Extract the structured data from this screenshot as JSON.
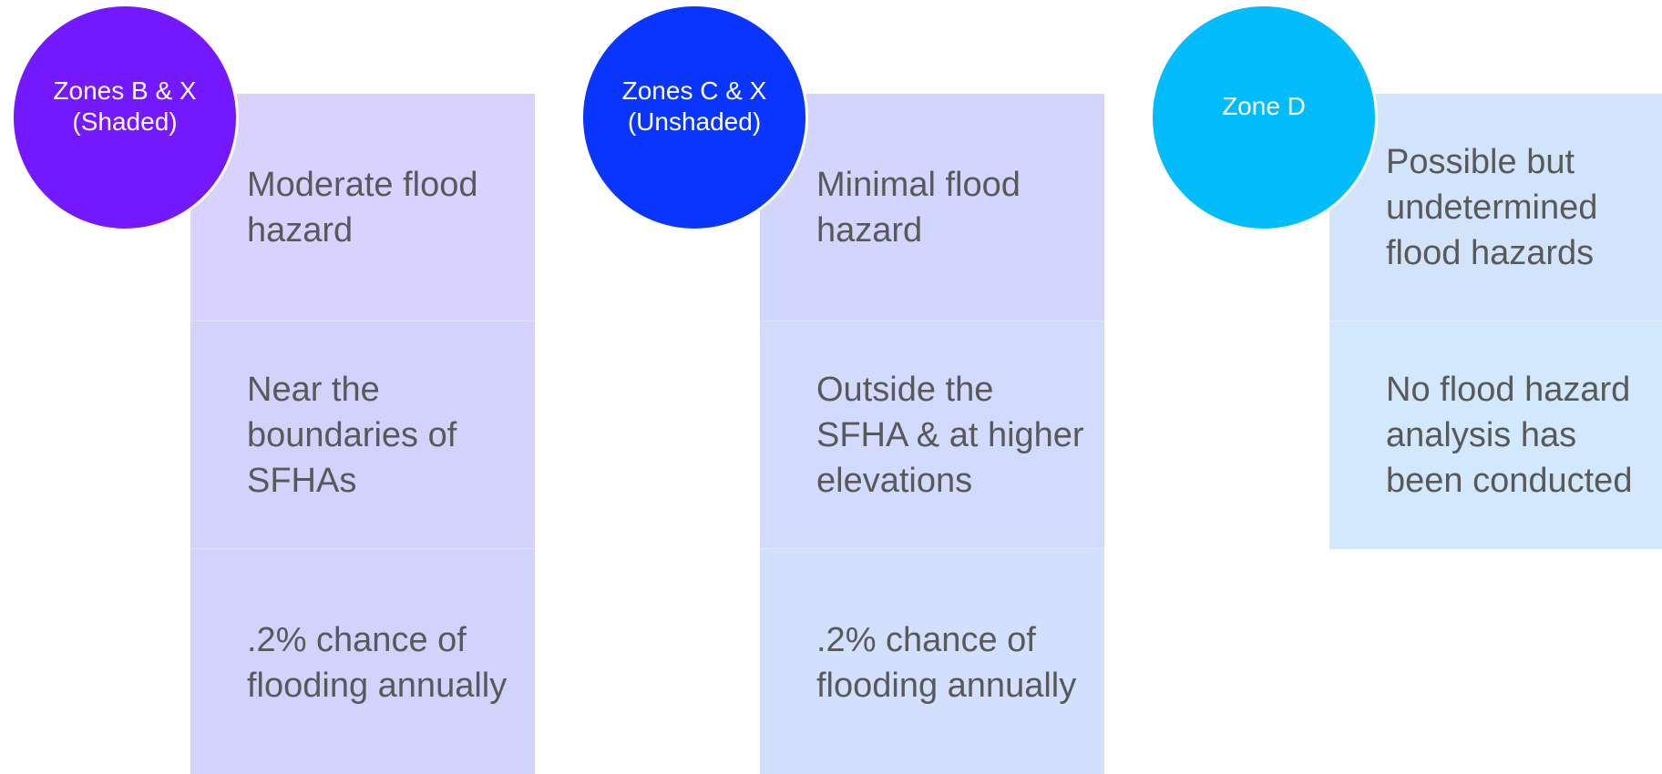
{
  "zones": [
    {
      "title": "Zones B & X (Shaded)",
      "badge_color": "#7318FF",
      "rows": [
        {
          "text": "Moderate flood hazard",
          "color": "#D9D2FE"
        },
        {
          "text": "Near the boundaries of SFHAs",
          "color": "#D3D2FD"
        },
        {
          "text": ".2% chance of flooding annually",
          "color": "#D2D3FD"
        }
      ]
    },
    {
      "title": "Zones C & X (Unshaded)",
      "badge_color": "#0A35FF",
      "rows": [
        {
          "text": "Minimal flood hazard",
          "color": "#D2D5FD"
        },
        {
          "text": "Outside the SFHA & at higher elevations",
          "color": "#D2DAFD"
        },
        {
          "text": ".2% chance of flooding annually",
          "color": "#D2E0FD"
        }
      ]
    },
    {
      "title": "Zone D",
      "badge_color": "#02BCFC",
      "rows": [
        {
          "text": "Possible but undetermined flood hazards",
          "color": "#D2E4FB"
        },
        {
          "text": "No flood hazard analysis has been conducted",
          "color": "#D1E8FD"
        }
      ]
    }
  ]
}
